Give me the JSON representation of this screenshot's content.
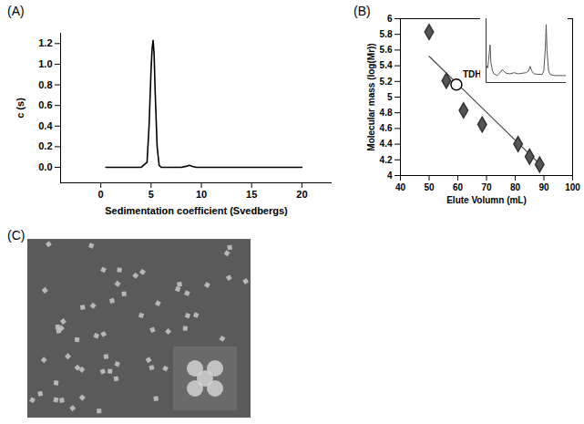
{
  "chart_data": [
    {
      "type": "line",
      "panel": "(A)",
      "xlabel": "Sedimentation coefficient (Svedbergs)",
      "ylabel": "c (s)",
      "x": [
        0.5,
        1,
        2,
        3,
        4,
        4.6,
        4.8,
        5.0,
        5.1,
        5.2,
        5.3,
        5.4,
        5.6,
        5.8,
        6,
        7,
        8,
        8.5,
        8.8,
        9.1,
        9.5,
        10,
        12,
        15,
        18,
        20
      ],
      "values": [
        0,
        0,
        0,
        0,
        0,
        0.05,
        0.4,
        0.95,
        1.15,
        1.23,
        1.1,
        0.75,
        0.2,
        0.02,
        0,
        0,
        0,
        0.01,
        0.02,
        0.01,
        0,
        0,
        0,
        0,
        0,
        0
      ],
      "color": "#000000",
      "xlim": [
        -4,
        23
      ],
      "xticks": [
        0,
        5,
        10,
        15,
        20
      ],
      "ylim": [
        -0.15,
        1.3
      ],
      "yticks": [
        {
          "value": 0,
          "label": "0.0"
        },
        0.2,
        0.4,
        0.6,
        0.8,
        {
          "value": 1,
          "label": "1.0"
        },
        1.2
      ]
    },
    {
      "type": "scatter",
      "panel": "(B)",
      "xlabel": "Elute Volumn (mL)",
      "ylabel": "Molecular mass (log(Mr))",
      "x": [
        50,
        56,
        62,
        68.5,
        81,
        85,
        88.5
      ],
      "values": [
        5.83,
        5.21,
        4.83,
        4.65,
        4.4,
        4.24,
        4.14
      ],
      "color": "#555555",
      "marker": "diamond",
      "fit": {
        "x": [
          50,
          89
        ],
        "values": [
          5.52,
          4.13
        ],
        "color": "#444444"
      },
      "annotations": [
        {
          "text": "TDHᵂᵀ",
          "x": 59.5,
          "y": 5.16,
          "marker": "circle",
          "color": "#000000"
        }
      ],
      "xlim": [
        40,
        100
      ],
      "xticks": [
        40,
        50,
        60,
        70,
        80,
        90,
        100
      ],
      "ylim": [
        4,
        6
      ],
      "yticks": [
        4,
        4.2,
        4.4,
        4.6,
        4.8,
        5,
        5.2,
        5.4,
        5.6,
        5.8,
        6
      ]
    },
    {
      "type": "line",
      "tick_labels": false,
      "color": "#555555",
      "x": [
        0,
        2,
        4,
        5,
        6,
        8,
        10,
        14,
        18,
        20,
        22,
        25,
        30,
        35,
        40,
        45,
        50,
        53,
        55,
        57,
        60,
        65,
        70,
        72,
        74,
        75,
        76,
        78,
        80,
        85,
        90,
        95,
        100
      ],
      "values": [
        0.3,
        0.25,
        0.5,
        0.65,
        0.35,
        0.2,
        0.15,
        0.12,
        0.18,
        0.22,
        0.2,
        0.16,
        0.15,
        0.17,
        0.15,
        0.16,
        0.17,
        0.2,
        0.28,
        0.2,
        0.15,
        0.14,
        0.14,
        0.2,
        0.6,
        1.0,
        0.55,
        0.2,
        0.14,
        0.12,
        0.12,
        0.12,
        0.12
      ],
      "xlim": [
        0,
        100
      ],
      "ylim": [
        0,
        1.1
      ]
    }
  ],
  "image": {
    "panel": "(C)"
  }
}
